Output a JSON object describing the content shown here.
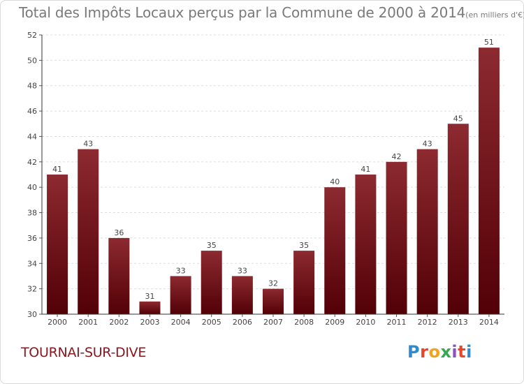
{
  "title": "Total des Impôts Locaux perçus par la Commune de 2000 à 2014",
  "title_unit": "(en milliers d'€)",
  "commune": "TOURNAI-SUR-DIVE",
  "logo": {
    "letters": [
      "P",
      "r",
      "o",
      "x",
      "i",
      "t",
      "i"
    ]
  },
  "chart_data": {
    "type": "bar",
    "title": "Total des Impôts Locaux perçus par la Commune de 2000 à 2014",
    "ylabel": "en milliers d'€",
    "xlabel": "",
    "categories": [
      "2000",
      "2001",
      "2002",
      "2003",
      "2004",
      "2005",
      "2006",
      "2007",
      "2008",
      "2009",
      "2010",
      "2011",
      "2012",
      "2013",
      "2014"
    ],
    "values": [
      41,
      43,
      36,
      31,
      33,
      35,
      33,
      32,
      35,
      40,
      41,
      42,
      43,
      45,
      51
    ],
    "ylim": [
      30,
      52
    ],
    "yticks": [
      30,
      32,
      34,
      36,
      38,
      40,
      42,
      44,
      46,
      48,
      50,
      52
    ],
    "grid": true,
    "bar_color": "#7a1a20"
  }
}
